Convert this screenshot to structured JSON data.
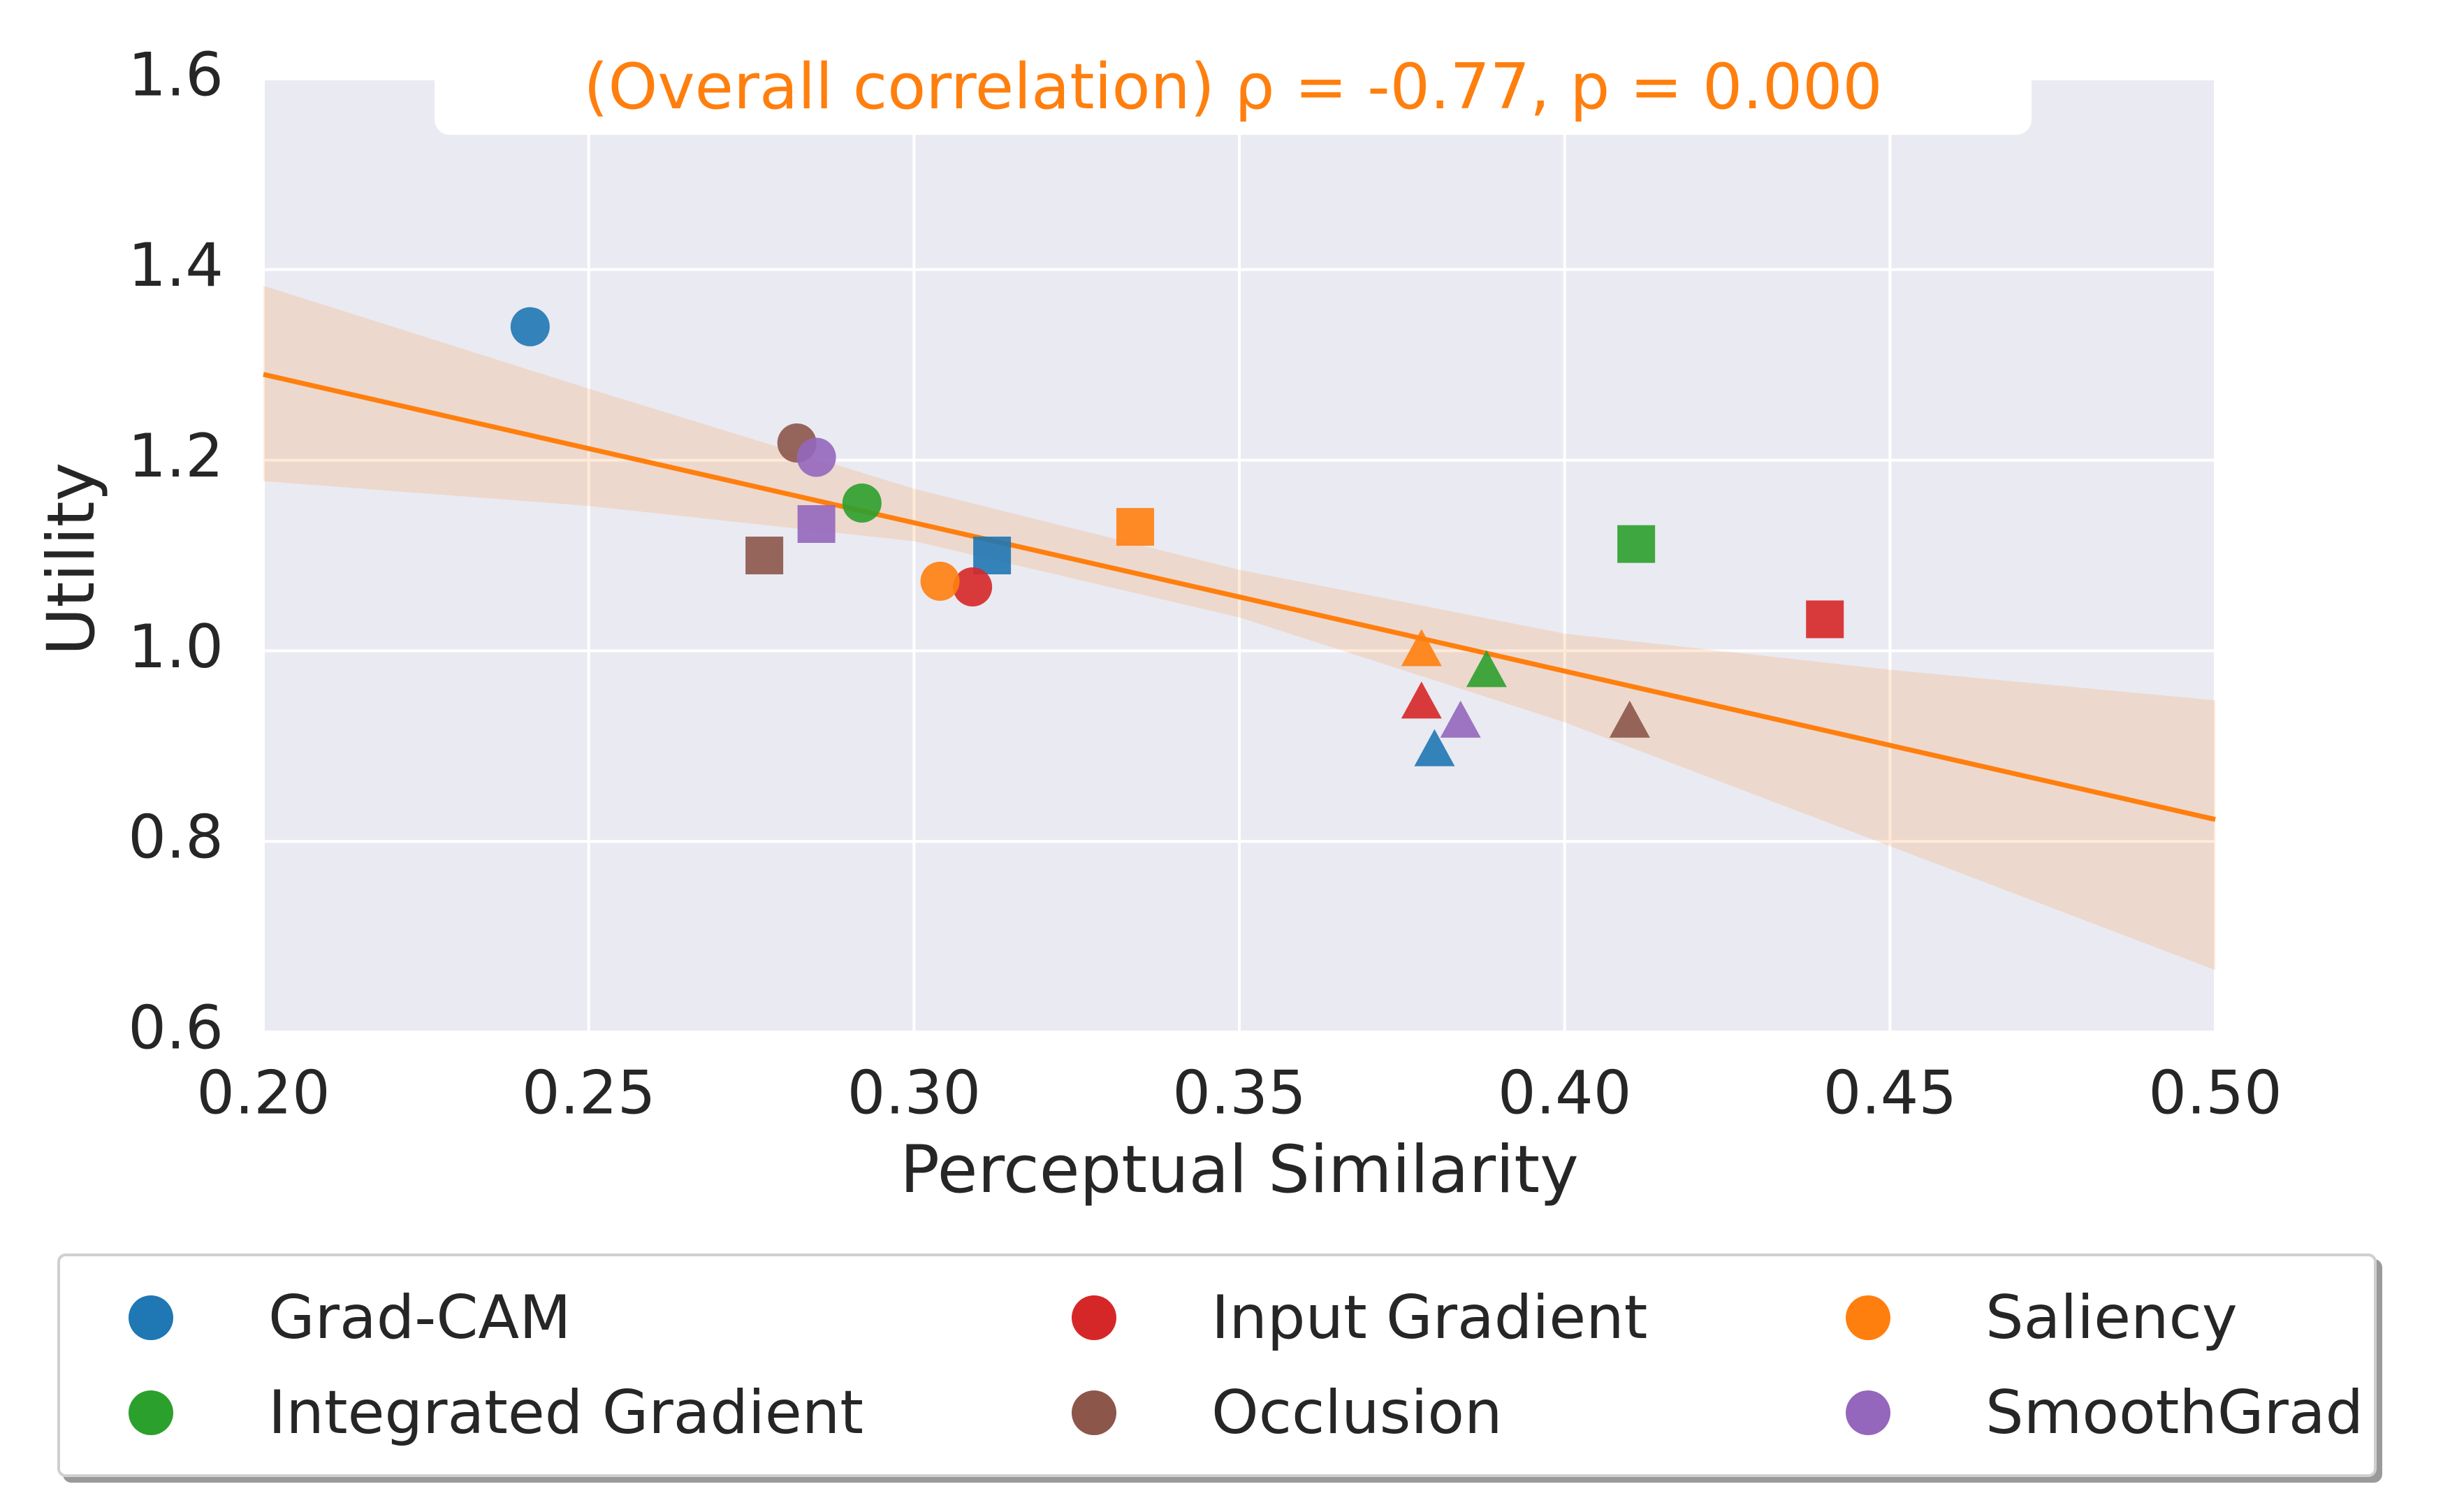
{
  "chart_data": {
    "type": "scatter",
    "title": "(Overall correlation)  ρ =  -0.77, p = 0.000",
    "xlabel": "Perceptual Similarity",
    "ylabel": "Utility",
    "xlim": [
      0.2,
      0.5
    ],
    "ylim": [
      0.6,
      1.6
    ],
    "xticks": [
      0.2,
      0.25,
      0.3,
      0.35,
      0.4,
      0.45,
      0.5
    ],
    "xtick_labels": [
      "0.20",
      "0.25",
      "0.30",
      "0.35",
      "0.40",
      "0.45",
      "0.50"
    ],
    "yticks": [
      0.6,
      0.8,
      1.0,
      1.2,
      1.4,
      1.6
    ],
    "ytick_labels": [
      "0.6",
      "0.8",
      "1.0",
      "1.2",
      "1.4",
      "1.6"
    ],
    "grid": true,
    "legend_position": "bottom",
    "regression": {
      "x": [
        0.2,
        0.5
      ],
      "y": [
        1.29,
        0.823
      ],
      "ci_upper": [
        [
          0.2,
          1.383
        ],
        [
          0.25,
          1.275
        ],
        [
          0.3,
          1.17
        ],
        [
          0.35,
          1.085
        ],
        [
          0.4,
          1.018
        ],
        [
          0.45,
          0.98
        ],
        [
          0.5,
          0.948
        ]
      ],
      "ci_lower": [
        [
          0.2,
          1.178
        ],
        [
          0.25,
          1.152
        ],
        [
          0.3,
          1.115
        ],
        [
          0.35,
          1.035
        ],
        [
          0.4,
          0.925
        ],
        [
          0.45,
          0.795
        ],
        [
          0.5,
          0.665
        ]
      ],
      "color": "#ff7f0e"
    },
    "series": [
      {
        "name": "Grad-CAM",
        "color": "#1f77b4",
        "points": [
          {
            "x": 0.241,
            "y": 1.34,
            "marker": "circle"
          },
          {
            "x": 0.312,
            "y": 1.1,
            "marker": "square"
          },
          {
            "x": 0.38,
            "y": 0.895,
            "marker": "triangle"
          }
        ]
      },
      {
        "name": "Input Gradient",
        "color": "#d62728",
        "points": [
          {
            "x": 0.309,
            "y": 1.067,
            "marker": "circle"
          },
          {
            "x": 0.44,
            "y": 1.033,
            "marker": "square"
          },
          {
            "x": 0.378,
            "y": 0.945,
            "marker": "triangle"
          }
        ]
      },
      {
        "name": "Saliency",
        "color": "#ff7f0e",
        "points": [
          {
            "x": 0.304,
            "y": 1.073,
            "marker": "circle"
          },
          {
            "x": 0.334,
            "y": 1.13,
            "marker": "square"
          },
          {
            "x": 0.378,
            "y": 1.0,
            "marker": "triangle"
          }
        ]
      },
      {
        "name": "Integrated Gradient",
        "color": "#2ca02c",
        "points": [
          {
            "x": 0.292,
            "y": 1.155,
            "marker": "circle"
          },
          {
            "x": 0.411,
            "y": 1.112,
            "marker": "square"
          },
          {
            "x": 0.388,
            "y": 0.978,
            "marker": "triangle"
          }
        ]
      },
      {
        "name": "Occlusion",
        "color": "#8c564b",
        "points": [
          {
            "x": 0.282,
            "y": 1.218,
            "marker": "circle"
          },
          {
            "x": 0.277,
            "y": 1.1,
            "marker": "square"
          },
          {
            "x": 0.41,
            "y": 0.925,
            "marker": "triangle"
          }
        ]
      },
      {
        "name": "SmoothGrad",
        "color": "#9467bd",
        "points": [
          {
            "x": 0.285,
            "y": 1.203,
            "marker": "circle"
          },
          {
            "x": 0.285,
            "y": 1.133,
            "marker": "square"
          },
          {
            "x": 0.384,
            "y": 0.925,
            "marker": "triangle"
          }
        ]
      }
    ]
  },
  "legend": {
    "items": [
      {
        "label": "Grad-CAM",
        "color": "#1f77b4"
      },
      {
        "label": "Input Gradient",
        "color": "#d62728"
      },
      {
        "label": "Saliency",
        "color": "#ff7f0e"
      },
      {
        "label": "Integrated Gradient",
        "color": "#2ca02c"
      },
      {
        "label": "Occlusion",
        "color": "#8c564b"
      },
      {
        "label": "SmoothGrad",
        "color": "#9467bd"
      }
    ]
  }
}
